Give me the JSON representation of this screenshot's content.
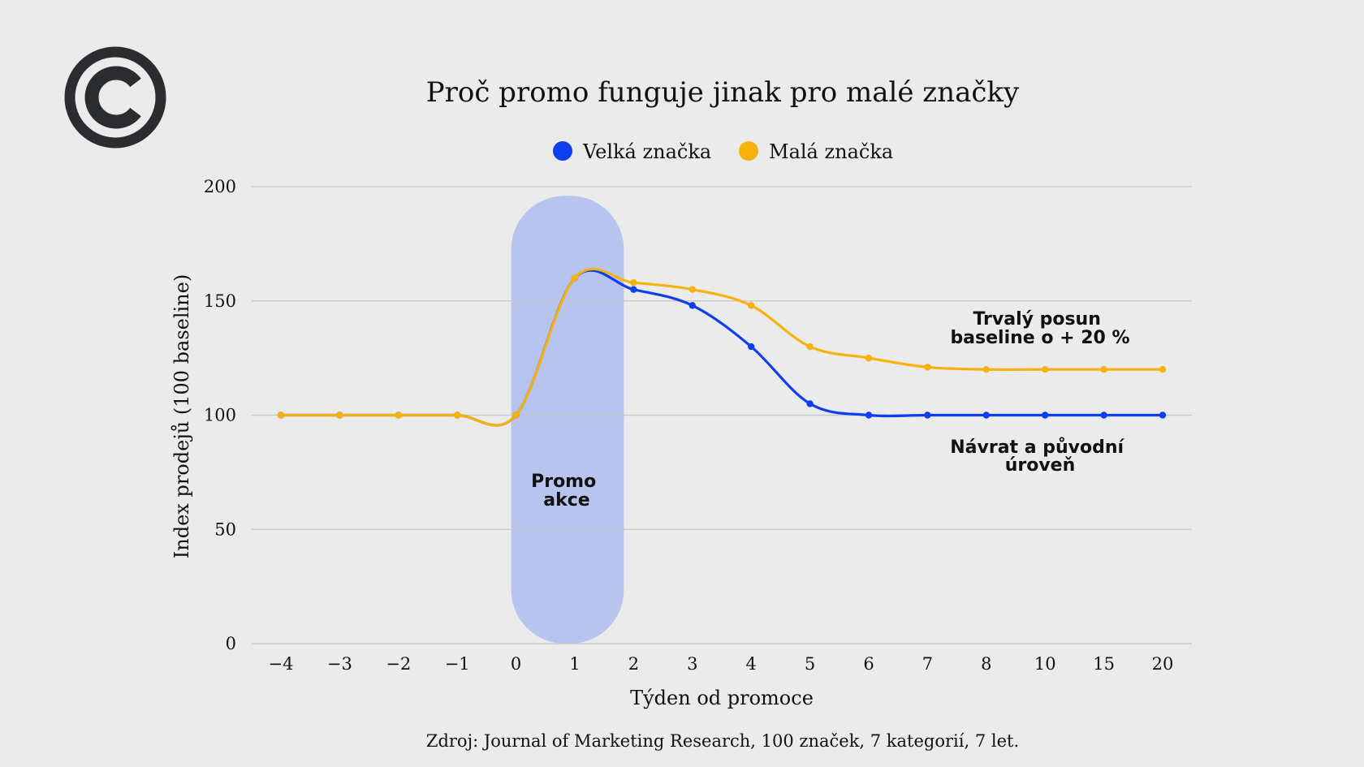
{
  "colors": {
    "background": "#ebebeb",
    "logo": "#2a2c30",
    "promo_band": "#b7c4ee"
  },
  "logo": {
    "icon": "copyright-icon"
  },
  "chart_data": {
    "type": "line",
    "title": "Proč promo funguje jinak pro malé značky",
    "xlabel": "Týden od promoce",
    "ylabel": "Index prodejů (100 baseline)",
    "ylim": [
      0,
      200
    ],
    "yticks": [
      0,
      50,
      100,
      150,
      200
    ],
    "categories": [
      "-4",
      "-3",
      "-2",
      "-1",
      "0",
      "1",
      "2",
      "3",
      "4",
      "5",
      "6",
      "7",
      "8",
      "10",
      "15",
      "20"
    ],
    "grid": true,
    "legend_position": "top-center",
    "series": [
      {
        "name": "Velká značka",
        "color": "#0d3ff0",
        "values": [
          100,
          100,
          100,
          100,
          100,
          160,
          155,
          148,
          130,
          105,
          100,
          100,
          100,
          100,
          100,
          100
        ]
      },
      {
        "name": "Malá značka",
        "color": "#f5b20b",
        "values": [
          100,
          100,
          100,
          100,
          100,
          160,
          158,
          155,
          148,
          130,
          125,
          121,
          120,
          120,
          120,
          120
        ]
      }
    ],
    "shaded_region": {
      "label_lines": [
        "Promo",
        "akce"
      ],
      "from_index": 4,
      "to_index": 6
    },
    "annotations": [
      {
        "lines": [
          "Trvalý posun",
          "baseline o + 20 %"
        ]
      },
      {
        "lines": [
          "Návrat a původní",
          "úroveň"
        ]
      }
    ],
    "source": "Zdroj: Journal of Marketing Research, 100 značek, 7 kategorií, 7 let."
  }
}
